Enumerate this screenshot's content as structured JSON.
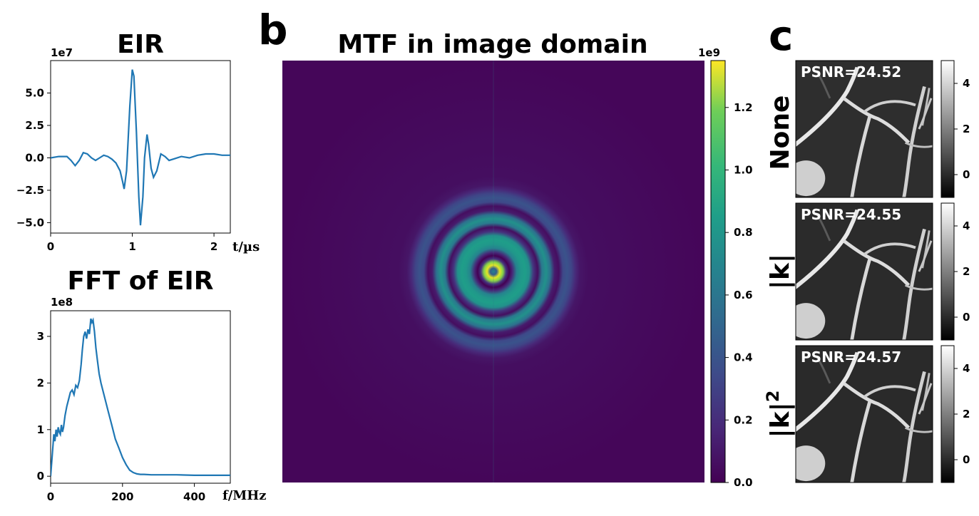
{
  "panel_labels": {
    "b": "b",
    "c": "c"
  },
  "chart_data": [
    {
      "id": "eir",
      "type": "line",
      "title": "EIR",
      "xlabel": "t/µs",
      "ylabel": "",
      "exponent_label": "1e7",
      "xlim": [
        0,
        2.2
      ],
      "ylim": [
        -5.8,
        7.5
      ],
      "x_ticks": [
        0,
        1,
        2
      ],
      "x_tick_labels": [
        "0",
        "1",
        "2"
      ],
      "y_ticks": [
        -5.0,
        -2.5,
        0.0,
        2.5,
        5.0
      ],
      "y_tick_labels": [
        "−5.0",
        "−2.5",
        "0.0",
        "2.5",
        "5.0"
      ],
      "grid": false,
      "color": "#1f77b4",
      "series": [
        {
          "x": [
            0,
            0.1,
            0.2,
            0.25,
            0.3,
            0.35,
            0.4,
            0.45,
            0.5,
            0.55,
            0.6,
            0.65,
            0.7,
            0.75,
            0.8,
            0.85,
            0.88,
            0.9,
            0.93,
            0.95,
            0.97,
            1.0,
            1.02,
            1.05,
            1.08,
            1.1,
            1.13,
            1.15,
            1.18,
            1.2,
            1.23,
            1.26,
            1.3,
            1.35,
            1.4,
            1.45,
            1.5,
            1.6,
            1.7,
            1.8,
            1.9,
            2.0,
            2.1,
            2.2
          ],
          "y": [
            0.0,
            0.1,
            0.1,
            -0.2,
            -0.6,
            -0.2,
            0.4,
            0.3,
            0.0,
            -0.2,
            0.0,
            0.2,
            0.1,
            -0.1,
            -0.4,
            -1.0,
            -1.8,
            -2.4,
            -1.0,
            1.5,
            4.0,
            6.8,
            6.3,
            2.0,
            -3.0,
            -5.2,
            -3.0,
            0.0,
            1.8,
            1.0,
            -0.8,
            -1.5,
            -1.0,
            0.3,
            0.1,
            -0.2,
            -0.1,
            0.1,
            0.0,
            0.2,
            0.3,
            0.3,
            0.2,
            0.2
          ]
        }
      ]
    },
    {
      "id": "fft",
      "type": "line",
      "title": "FFT of EIR",
      "xlabel": "f/MHz",
      "ylabel": "",
      "exponent_label": "1e8",
      "xlim": [
        0,
        500
      ],
      "ylim": [
        -0.15,
        3.55
      ],
      "x_ticks": [
        0,
        200,
        400
      ],
      "x_tick_labels": [
        "0",
        "200",
        "400"
      ],
      "y_ticks": [
        0,
        1,
        2,
        3
      ],
      "y_tick_labels": [
        "0",
        "1",
        "2",
        "3"
      ],
      "grid": false,
      "color": "#1f77b4",
      "series": [
        {
          "x": [
            0,
            3,
            6,
            9,
            12,
            15,
            18,
            21,
            24,
            27,
            30,
            33,
            36,
            40,
            45,
            50,
            55,
            60,
            65,
            70,
            75,
            80,
            85,
            88,
            92,
            96,
            100,
            104,
            108,
            112,
            115,
            118,
            122,
            126,
            130,
            135,
            140,
            150,
            160,
            170,
            180,
            190,
            200,
            210,
            220,
            230,
            240,
            250,
            260,
            280,
            300,
            350,
            400,
            450,
            500
          ],
          "y": [
            0.0,
            0.3,
            0.6,
            0.9,
            0.75,
            1.0,
            0.85,
            1.05,
            0.95,
            0.9,
            1.1,
            0.95,
            1.05,
            1.3,
            1.5,
            1.65,
            1.8,
            1.85,
            1.75,
            1.95,
            1.9,
            2.05,
            2.4,
            2.7,
            3.0,
            3.1,
            2.95,
            3.15,
            3.05,
            3.38,
            3.3,
            3.35,
            3.1,
            2.75,
            2.5,
            2.2,
            2.0,
            1.7,
            1.4,
            1.1,
            0.8,
            0.6,
            0.4,
            0.25,
            0.13,
            0.08,
            0.05,
            0.04,
            0.04,
            0.03,
            0.03,
            0.03,
            0.02,
            0.02,
            0.02
          ]
        }
      ]
    },
    {
      "id": "mtf",
      "type": "heatmap",
      "title": "MTF in image domain",
      "colormap": "viridis",
      "color_min": 0.0,
      "color_max": 1.35,
      "exponent_label": "1e9",
      "colorbar_ticks": [
        0.0,
        0.2,
        0.4,
        0.6,
        0.8,
        1.0,
        1.2
      ],
      "colorbar_tick_labels": [
        "0.0",
        "0.2",
        "0.4",
        "0.6",
        "0.8",
        "1.0",
        "1.2"
      ],
      "radial_profile": {
        "r": [
          0.0,
          0.015,
          0.03,
          0.045,
          0.06,
          0.075,
          0.09,
          0.11,
          0.13,
          0.15,
          0.17,
          0.19,
          0.21,
          0.23,
          0.25,
          0.27,
          0.29,
          0.31,
          0.33,
          0.35,
          0.37,
          0.39,
          0.41,
          0.45,
          1.0
        ],
        "value": [
          0.6,
          0.4,
          1.3,
          1.1,
          0.2,
          0.0,
          0.15,
          0.6,
          0.72,
          0.75,
          0.68,
          0.2,
          0.05,
          0.55,
          0.68,
          0.5,
          0.1,
          0.05,
          0.3,
          0.35,
          0.28,
          0.15,
          0.08,
          0.05,
          0.02
        ]
      }
    },
    {
      "id": "regularization",
      "type": "heatmap",
      "colormap": "gray",
      "color_min": -1.0,
      "color_max": 5.0,
      "colorbar_ticks": [
        0,
        2,
        4
      ],
      "colorbar_tick_labels": [
        "0",
        "2",
        "4"
      ],
      "rows": [
        {
          "label": "None",
          "label_sup": "",
          "psnr_text": "PSNR=24.52"
        },
        {
          "label": "|k|",
          "label_sup": "",
          "psnr_text": "PSNR=24.55"
        },
        {
          "label": "|k|",
          "label_sup": "2",
          "psnr_text": "PSNR=24.57"
        }
      ]
    }
  ]
}
